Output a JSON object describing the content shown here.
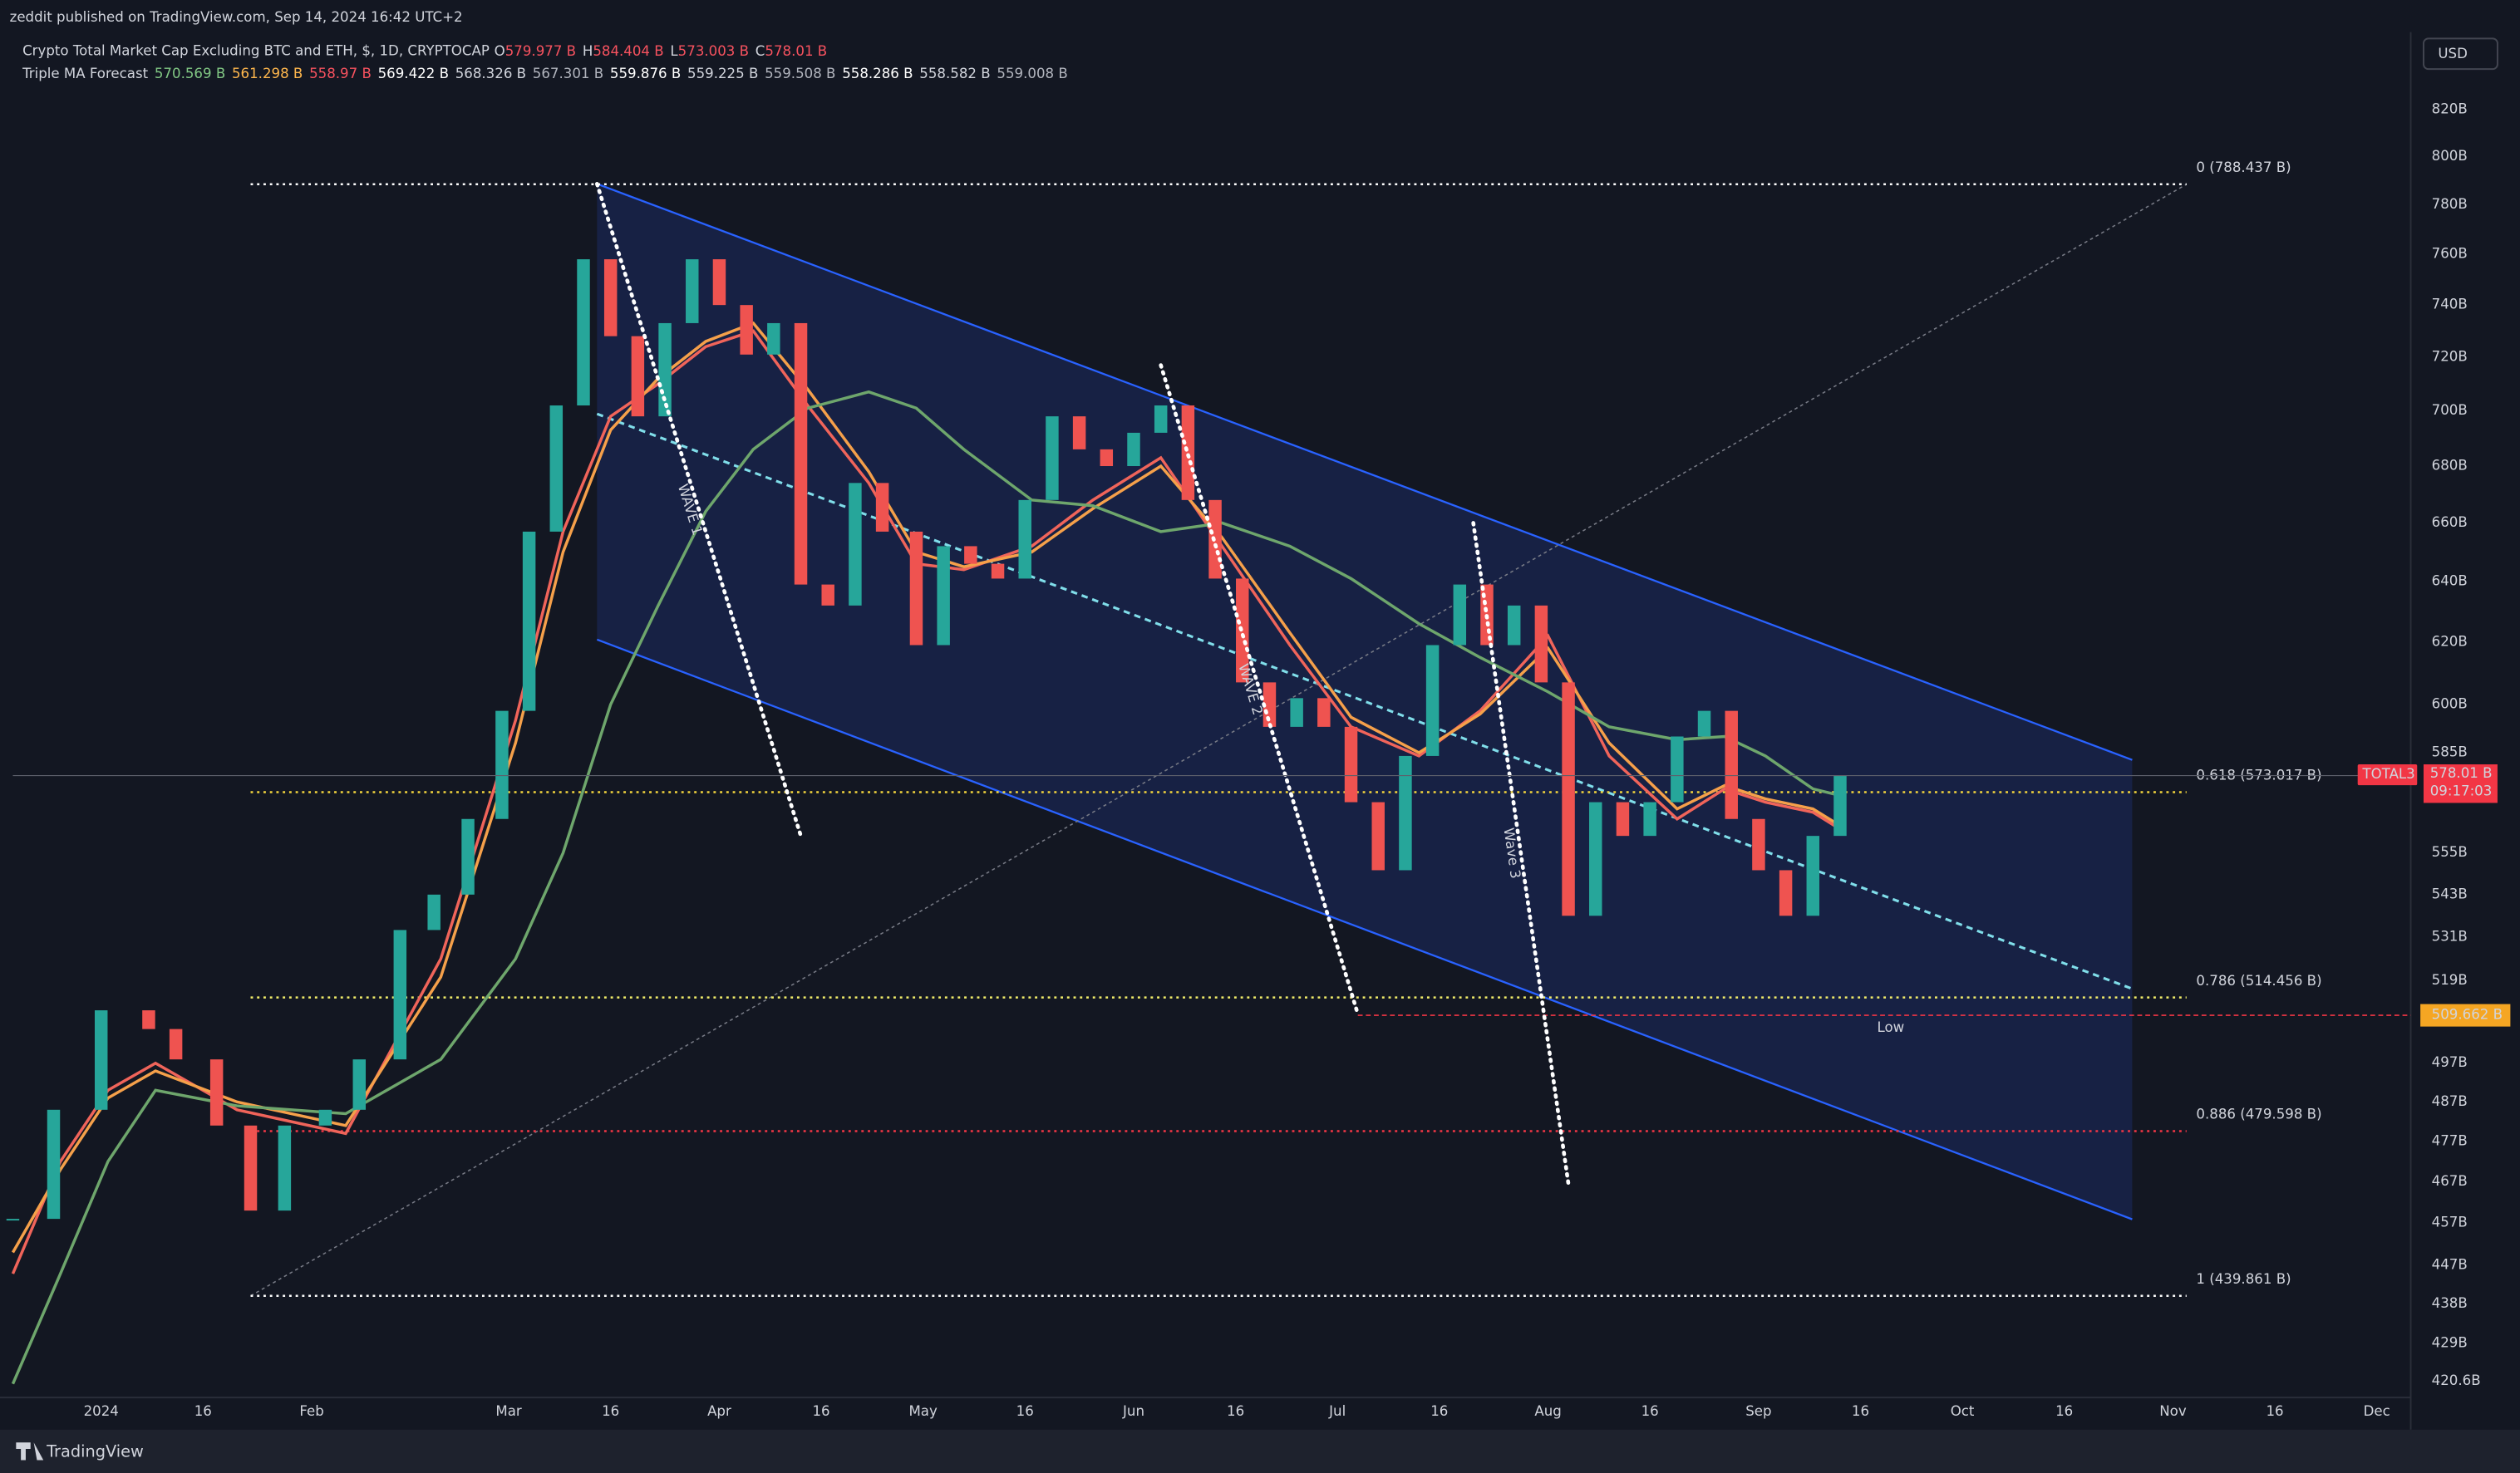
{
  "header": {
    "publisher": "zeddit published on TradingView.com, Sep 14, 2024 16:42 UTC+2",
    "brand": "TradingView"
  },
  "chart_data": {
    "type": "candlestick",
    "title": "Crypto Total Market Cap Excluding BTC and ETH, $, 1D, CRYPTOCAP",
    "ohlc": [
      {
        "label": "O",
        "value": "579.977 B"
      },
      {
        "label": "H",
        "value": "584.404 B"
      },
      {
        "label": "L",
        "value": "573.003 B"
      },
      {
        "label": "C",
        "value": "578.01 B"
      }
    ],
    "ohlc_color": "#f7525f",
    "indicator": {
      "name": "Triple MA Forecast",
      "values": [
        {
          "text": "570.569 B",
          "color": "#81c784"
        },
        {
          "text": "561.298 B",
          "color": "#ffb74d"
        },
        {
          "text": "558.97 B",
          "color": "#f7525f"
        },
        {
          "text": "569.422 B",
          "color": "#ffffff"
        },
        {
          "text": "568.326 B",
          "color": "#d1d4dc"
        },
        {
          "text": "567.301 B",
          "color": "#b2b5be"
        },
        {
          "text": "559.876 B",
          "color": "#ffffff"
        },
        {
          "text": "559.225 B",
          "color": "#d1d4dc"
        },
        {
          "text": "559.508 B",
          "color": "#b2b5be"
        },
        {
          "text": "558.286 B",
          "color": "#ffffff"
        },
        {
          "text": "558.582 B",
          "color": "#d1d4dc"
        },
        {
          "text": "559.008 B",
          "color": "#b2b5be"
        }
      ]
    },
    "currency": "USD",
    "log_scale": true,
    "grid": false,
    "xlim": [
      "2023-12-19",
      "2024-12-06"
    ],
    "ylim": [
      417,
      854
    ],
    "xticks": [
      {
        "value": "2024-01-01",
        "label": "2024"
      },
      {
        "value": "2024-01-16",
        "label": "16"
      },
      {
        "value": "2024-02-01",
        "label": "Feb"
      },
      {
        "value": "2024-03-01",
        "label": "Mar"
      },
      {
        "value": "2024-03-16",
        "label": "16"
      },
      {
        "value": "2024-04-01",
        "label": "Apr"
      },
      {
        "value": "2024-04-16",
        "label": "16"
      },
      {
        "value": "2024-05-01",
        "label": "May"
      },
      {
        "value": "2024-05-16",
        "label": "16"
      },
      {
        "value": "2024-06-01",
        "label": "Jun"
      },
      {
        "value": "2024-06-16",
        "label": "16"
      },
      {
        "value": "2024-07-01",
        "label": "Jul"
      },
      {
        "value": "2024-07-16",
        "label": "16"
      },
      {
        "value": "2024-08-01",
        "label": "Aug"
      },
      {
        "value": "2024-08-16",
        "label": "16"
      },
      {
        "value": "2024-09-01",
        "label": "Sep"
      },
      {
        "value": "2024-09-16",
        "label": "16"
      },
      {
        "value": "2024-10-01",
        "label": "Oct"
      },
      {
        "value": "2024-10-16",
        "label": "16"
      },
      {
        "value": "2024-11-01",
        "label": "Nov"
      },
      {
        "value": "2024-11-16",
        "label": "16"
      },
      {
        "value": "2024-12-01",
        "label": "Dec"
      }
    ],
    "yticks": [
      {
        "value": 820,
        "label": "820B"
      },
      {
        "value": 800,
        "label": "800B"
      },
      {
        "value": 780,
        "label": "780B"
      },
      {
        "value": 760,
        "label": "760B"
      },
      {
        "value": 740,
        "label": "740B"
      },
      {
        "value": 720,
        "label": "720B"
      },
      {
        "value": 700,
        "label": "700B"
      },
      {
        "value": 680,
        "label": "680B"
      },
      {
        "value": 660,
        "label": "660B"
      },
      {
        "value": 640,
        "label": "640B"
      },
      {
        "value": 620,
        "label": "620B"
      },
      {
        "value": 600,
        "label": "600B"
      },
      {
        "value": 585,
        "label": "585B"
      },
      {
        "value": 555,
        "label": "555B"
      },
      {
        "value": 543,
        "label": "543B"
      },
      {
        "value": 531,
        "label": "531B"
      },
      {
        "value": 519,
        "label": "519B"
      },
      {
        "value": 497,
        "label": "497B"
      },
      {
        "value": 487,
        "label": "487B"
      },
      {
        "value": 477,
        "label": "477B"
      },
      {
        "value": 467,
        "label": "467B"
      },
      {
        "value": 457,
        "label": "457B"
      },
      {
        "value": 447,
        "label": "447B"
      },
      {
        "value": 438,
        "label": "438B"
      },
      {
        "value": 429,
        "label": "429B"
      },
      {
        "value": 420.6,
        "label": "420.6B"
      }
    ],
    "x": [
      "2023-12-19",
      "2023-12-25",
      "2024-01-01",
      "2024-01-08",
      "2024-01-12",
      "2024-01-18",
      "2024-01-23",
      "2024-01-28",
      "2024-02-03",
      "2024-02-08",
      "2024-02-14",
      "2024-02-19",
      "2024-02-24",
      "2024-02-29",
      "2024-03-04",
      "2024-03-08",
      "2024-03-12",
      "2024-03-16",
      "2024-03-20",
      "2024-03-24",
      "2024-03-28",
      "2024-04-01",
      "2024-04-05",
      "2024-04-09",
      "2024-04-13",
      "2024-04-17",
      "2024-04-21",
      "2024-04-25",
      "2024-04-30",
      "2024-05-04",
      "2024-05-08",
      "2024-05-12",
      "2024-05-16",
      "2024-05-20",
      "2024-05-24",
      "2024-05-28",
      "2024-06-01",
      "2024-06-05",
      "2024-06-09",
      "2024-06-13",
      "2024-06-17",
      "2024-06-21",
      "2024-06-25",
      "2024-06-29",
      "2024-07-03",
      "2024-07-07",
      "2024-07-11",
      "2024-07-15",
      "2024-07-19",
      "2024-07-23",
      "2024-07-27",
      "2024-07-31",
      "2024-08-04",
      "2024-08-08",
      "2024-08-12",
      "2024-08-16",
      "2024-08-20",
      "2024-08-24",
      "2024-08-28",
      "2024-09-01",
      "2024-09-05",
      "2024-09-09",
      "2024-09-13"
    ],
    "series": [
      {
        "name": "TOTAL3",
        "color_up": "#26a69a",
        "color_down": "#ef5350",
        "values": [
          458,
          485,
          511,
          506,
          498,
          481,
          460,
          481,
          485,
          498,
          533,
          543,
          565,
          598,
          657,
          702,
          758,
          728,
          698,
          733,
          758,
          740,
          721,
          733,
          639,
          632,
          674,
          657,
          619,
          652,
          646,
          641,
          668,
          698,
          686,
          680,
          692,
          702,
          668,
          641,
          607,
          593,
          602,
          593,
          570,
          550,
          584,
          619,
          639,
          619,
          632,
          607,
          537,
          570,
          560,
          570,
          590,
          598,
          565,
          550,
          537,
          560,
          578.01
        ]
      },
      {
        "color": "#f0645a",
        "x": [
          "2023-12-19",
          "2023-12-26",
          "2024-01-02",
          "2024-01-09",
          "2024-01-21",
          "2024-02-06",
          "2024-02-20",
          "2024-03-02",
          "2024-03-09",
          "2024-03-16",
          "2024-03-23",
          "2024-03-30",
          "2024-04-06",
          "2024-04-14",
          "2024-04-23",
          "2024-04-30",
          "2024-05-07",
          "2024-05-17",
          "2024-05-26",
          "2024-06-05",
          "2024-06-14",
          "2024-06-24",
          "2024-07-03",
          "2024-07-13",
          "2024-07-22",
          "2024-08-01",
          "2024-08-10",
          "2024-08-20",
          "2024-08-27",
          "2024-09-02",
          "2024-09-09",
          "2024-09-13"
        ],
        "values": [
          445,
          472,
          490,
          497,
          485,
          479,
          525,
          595,
          657,
          698,
          710,
          724,
          730,
          702,
          674,
          646,
          644,
          652,
          668,
          683,
          652,
          619,
          593,
          584,
          598,
          622,
          584,
          565,
          574,
          570,
          567,
          562
        ]
      },
      {
        "color": "#f5a04a",
        "x": [
          "2023-12-19",
          "2023-12-26",
          "2024-01-02",
          "2024-01-09",
          "2024-01-21",
          "2024-02-06",
          "2024-02-20",
          "2024-03-02",
          "2024-03-09",
          "2024-03-16",
          "2024-03-23",
          "2024-03-30",
          "2024-04-06",
          "2024-04-14",
          "2024-04-23",
          "2024-04-30",
          "2024-05-07",
          "2024-05-17",
          "2024-05-26",
          "2024-06-05",
          "2024-06-14",
          "2024-06-24",
          "2024-07-03",
          "2024-07-13",
          "2024-07-22",
          "2024-08-01",
          "2024-08-10",
          "2024-08-20",
          "2024-08-27",
          "2024-09-02",
          "2024-09-09",
          "2024-09-13"
        ],
        "values": [
          450,
          470,
          488,
          495,
          487,
          481,
          520,
          588,
          650,
          693,
          712,
          726,
          733,
          708,
          678,
          650,
          645,
          650,
          665,
          680,
          655,
          623,
          596,
          585,
          597,
          618,
          588,
          568,
          575,
          571,
          568,
          563
        ]
      },
      {
        "color": "#6ea66c",
        "x": [
          "2023-12-19",
          "2023-12-26",
          "2024-01-02",
          "2024-01-09",
          "2024-01-21",
          "2024-02-06",
          "2024-02-20",
          "2024-03-02",
          "2024-03-09",
          "2024-03-16",
          "2024-03-23",
          "2024-03-30",
          "2024-04-06",
          "2024-04-14",
          "2024-04-23",
          "2024-04-30",
          "2024-05-07",
          "2024-05-17",
          "2024-05-26",
          "2024-06-05",
          "2024-06-14",
          "2024-06-24",
          "2024-07-03",
          "2024-07-13",
          "2024-07-22",
          "2024-08-01",
          "2024-08-10",
          "2024-08-20",
          "2024-08-27",
          "2024-09-02",
          "2024-09-09",
          "2024-09-13"
        ],
        "values": [
          420,
          445,
          472,
          490,
          486,
          484,
          498,
          525,
          555,
          600,
          632,
          664,
          686,
          701,
          707,
          701,
          686,
          668,
          666,
          657,
          660,
          652,
          641,
          626,
          615,
          604,
          593,
          589,
          590,
          584,
          574,
          572
        ]
      }
    ],
    "last_price": {
      "value": 578.01,
      "label": "578.01 B",
      "timer": "09:17:03",
      "tag": "TOTAL3"
    },
    "low": {
      "value": 509.662,
      "label": "509.662 B",
      "text": "Low",
      "start": "2024-07-04"
    },
    "fib": {
      "start": "2024-01-23",
      "end": "2024-11-03",
      "levels": [
        {
          "label": "0 (788.437 B)",
          "value": 788.437,
          "color": "#ffffff"
        },
        {
          "label": "0.618 (573.017 B)",
          "value": 573.017,
          "color": "#f2d43d"
        },
        {
          "label": "0.786 (514.456 B)",
          "value": 514.456,
          "color": "#f2ed6a"
        },
        {
          "label": "0.886 (479.598 B)",
          "value": 479.598,
          "color": "#f23645"
        },
        {
          "label": "1 (439.861 B)",
          "value": 439.861,
          "color": "#ffffff"
        }
      ],
      "trend": {
        "x": [
          "2024-01-23",
          "2024-11-03"
        ],
        "values": [
          439.861,
          788.437
        ]
      }
    },
    "channel": {
      "color": "#2962ff",
      "fill": "#1a2550",
      "upper": {
        "x": [
          "2024-03-14",
          "2024-10-26"
        ],
        "values": [
          788.6,
          582.8
        ]
      },
      "lower": {
        "x": [
          "2024-03-14",
          "2024-10-26"
        ],
        "values": [
          620.8,
          457.9
        ]
      },
      "middle": {
        "x": [
          "2024-03-14",
          "2024-10-26"
        ],
        "values": [
          698.9,
          516.8
        ],
        "color": "#80deea"
      }
    },
    "waves": [
      {
        "label": "WAVE 1",
        "x": [
          "2024-03-14",
          "2024-04-13"
        ],
        "values": [
          788.6,
          560
        ]
      },
      {
        "label": "WAVE 2",
        "x": [
          "2024-06-05",
          "2024-07-04"
        ],
        "values": [
          717,
          510
        ]
      },
      {
        "label": "Wave 3",
        "x": [
          "2024-07-21",
          "2024-08-04"
        ],
        "values": [
          660,
          466.5
        ]
      }
    ]
  }
}
